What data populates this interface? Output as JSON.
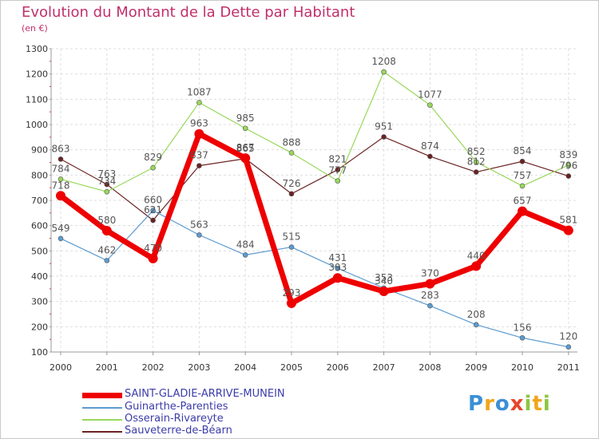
{
  "title": "Evolution du Montant de la Dette par Habitant",
  "subtitle": "(en €)",
  "logo": {
    "letters": [
      {
        "ch": "P",
        "color": "#3b8fd6"
      },
      {
        "ch": "r",
        "color": "#f2a51a"
      },
      {
        "ch": "o",
        "color": "#3b8fd6"
      },
      {
        "ch": "x",
        "color": "#e8452c"
      },
      {
        "ch": "i",
        "color": "#8cc63f"
      },
      {
        "ch": "t",
        "color": "#f2a51a"
      },
      {
        "ch": "i",
        "color": "#8cc63f"
      }
    ]
  },
  "chart_data": {
    "type": "line",
    "x": [
      2000,
      2001,
      2002,
      2003,
      2004,
      2005,
      2006,
      2007,
      2008,
      2009,
      2010,
      2011
    ],
    "xticks": [
      "2000",
      "2001",
      "2002",
      "2003",
      "2004",
      "2005",
      "2006",
      "2007",
      "2008",
      "2009",
      "2010",
      "2011"
    ],
    "ylim": [
      100,
      1300
    ],
    "yticks": [
      "100",
      "200",
      "300",
      "400",
      "500",
      "600",
      "700",
      "800",
      "900",
      "1000",
      "1100",
      "1200",
      "1300"
    ],
    "grid": true,
    "legend_position": "bottom-left",
    "series": [
      {
        "name": "Sauveterre-de-Béarn",
        "color": "#6b2222",
        "width": 1.2,
        "values": [
          863,
          763,
          621,
          837,
          865,
          726,
          821,
          951,
          874,
          812,
          854,
          796
        ]
      },
      {
        "name": "Osserain-Rivareyte",
        "color": "#98d85b",
        "width": 1.2,
        "values": [
          784,
          734,
          829,
          1087,
          985,
          888,
          777,
          1208,
          1077,
          852,
          757,
          839
        ]
      },
      {
        "name": "Guinarthe-Parenties",
        "color": "#5c9bd1",
        "width": 1.2,
        "values": [
          549,
          462,
          660,
          563,
          484,
          515,
          431,
          353,
          283,
          208,
          156,
          120
        ]
      },
      {
        "name": "SAINT-GLADIE-ARRIVE-MUNEIN",
        "color": "#ee0000",
        "width": 7,
        "values": [
          718,
          580,
          470,
          963,
          867,
          293,
          393,
          340,
          370,
          440,
          657,
          581
        ]
      }
    ],
    "data_labels": [
      [
        "863",
        "763",
        "621",
        "837",
        "865",
        "726",
        "821",
        "951",
        "874",
        "812",
        "854",
        "796"
      ],
      [
        "784",
        "734",
        "829",
        "1087",
        "985",
        "888",
        "777",
        "1208",
        "1077",
        "852",
        "757",
        "839"
      ],
      [
        "549",
        "462",
        "660",
        "563",
        "484",
        "515",
        "431",
        "353",
        "283",
        "208",
        "156",
        "120"
      ],
      [
        "718",
        "580",
        "470",
        "963",
        "867",
        "293",
        "393",
        "340",
        "370",
        "440",
        "657",
        "581"
      ]
    ],
    "legend_order": [
      "SAINT-GLADIE-ARRIVE-MUNEIN",
      "Guinarthe-Parenties",
      "Osserain-Rivareyte",
      "Sauveterre-de-Béarn"
    ]
  }
}
